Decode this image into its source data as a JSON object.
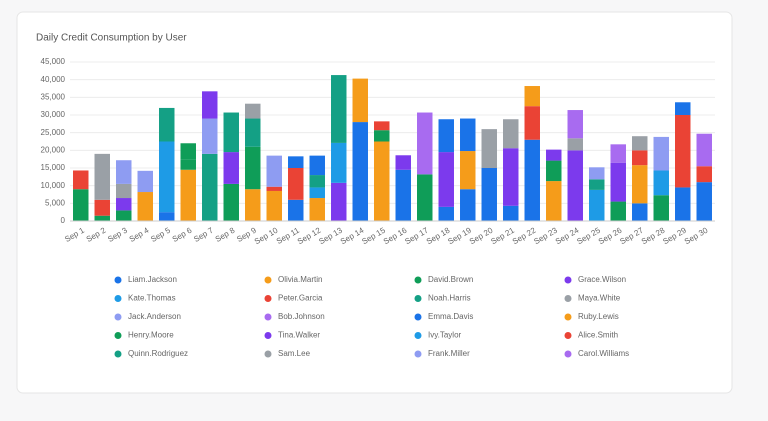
{
  "chart_data": {
    "type": "stacked_bar",
    "title": "Daily Credit Consumption by User",
    "categories": [
      "Sep 1",
      "Sep 2",
      "Sep 3",
      "Sep 4",
      "Sep 5",
      "Sep 6",
      "Sep 7",
      "Sep 8",
      "Sep 9",
      "Sep 10",
      "Sep 11",
      "Sep 12",
      "Sep 13",
      "Sep 14",
      "Sep 15",
      "Sep 16",
      "Sep 17",
      "Sep 18",
      "Sep 19",
      "Sep 20",
      "Sep 21",
      "Sep 22",
      "Sep 23",
      "Sep 24",
      "Sep 25",
      "Sep 26",
      "Sep 27",
      "Sep 28",
      "Sep 29",
      "Sep 30"
    ],
    "ylim": [
      0,
      45000
    ],
    "yticks": [
      0,
      {
        "value": 5000,
        "label": "5,000"
      },
      {
        "value": 10000,
        "label": "10,000"
      },
      {
        "value": 15000,
        "label": "15,000"
      },
      {
        "value": 20000,
        "label": "20,000"
      },
      {
        "value": 25000,
        "label": "25,000"
      },
      {
        "value": 30000,
        "label": "30,000"
      },
      {
        "value": 35000,
        "label": "35,000"
      },
      {
        "value": 40000,
        "label": "40,000"
      },
      {
        "value": 45000,
        "label": "45,000"
      }
    ],
    "grid": true,
    "series": [
      {
        "name": "Liam.Jackson",
        "color": "#1a73e8",
        "values": [
          null,
          null,
          null,
          null,
          2500,
          null,
          null,
          null,
          null,
          null,
          6000,
          null,
          null,
          28000,
          null,
          14500,
          null,
          4000,
          9000,
          15000,
          4300,
          23000,
          null,
          null,
          null,
          null,
          5000,
          null,
          9500,
          11000
        ]
      },
      {
        "name": "Olivia.Martin",
        "color": "#f59c1a",
        "values": [
          null,
          null,
          null,
          8200,
          null,
          14500,
          null,
          null,
          9000,
          8500,
          null,
          6500,
          null,
          12300,
          22500,
          null,
          null,
          null,
          10800,
          null,
          null,
          null,
          11300,
          null,
          null,
          null,
          10800,
          null,
          null,
          null
        ]
      },
      {
        "name": "David.Brown",
        "color": "#0f9d58",
        "values": [
          9000,
          1500,
          3000,
          null,
          null,
          3000,
          null,
          10500,
          12000,
          null,
          null,
          null,
          null,
          null,
          3200,
          null,
          13200,
          null,
          null,
          null,
          null,
          null,
          5800,
          null,
          null,
          5500,
          null,
          7300,
          null,
          null
        ]
      },
      {
        "name": "Grace.Wilson",
        "color": "#7c3aed",
        "values": [
          null,
          null,
          3500,
          null,
          null,
          null,
          null,
          9000,
          null,
          null,
          null,
          null,
          10800,
          null,
          null,
          4100,
          null,
          15500,
          null,
          null,
          16300,
          null,
          3100,
          20000,
          null,
          11000,
          null,
          null,
          null,
          null
        ]
      },
      {
        "name": "Kate.Thomas",
        "color": "#1e9be6",
        "values": [
          null,
          null,
          null,
          null,
          20000,
          null,
          null,
          null,
          null,
          null,
          null,
          3000,
          11300,
          null,
          null,
          null,
          null,
          null,
          null,
          null,
          null,
          null,
          null,
          null,
          8800,
          null,
          null,
          7000,
          null,
          null
        ]
      },
      {
        "name": "Peter.Garcia",
        "color": "#ea4335",
        "values": [
          5300,
          4500,
          null,
          null,
          null,
          null,
          null,
          null,
          null,
          1200,
          9000,
          null,
          null,
          null,
          2500,
          null,
          null,
          null,
          null,
          null,
          null,
          9500,
          null,
          null,
          null,
          null,
          4200,
          null,
          20500,
          4500
        ]
      },
      {
        "name": "Noah.Harris",
        "color": "#14a085",
        "values": [
          null,
          null,
          null,
          null,
          9500,
          null,
          19000,
          11200,
          8000,
          null,
          null,
          3500,
          19200,
          null,
          null,
          null,
          null,
          null,
          null,
          null,
          null,
          null,
          null,
          null,
          3000,
          null,
          null,
          null,
          null,
          null
        ]
      },
      {
        "name": "Maya.White",
        "color": "#9aa0a6",
        "values": [
          null,
          13000,
          4000,
          null,
          null,
          null,
          null,
          null,
          4200,
          null,
          null,
          null,
          null,
          null,
          null,
          null,
          null,
          null,
          null,
          11000,
          8200,
          null,
          null,
          3400,
          null,
          null,
          4000,
          null,
          null,
          null
        ]
      },
      {
        "name": "Jack.Anderson",
        "color": "#8e9cf2",
        "values": [
          null,
          null,
          6700,
          6000,
          null,
          null,
          10000,
          null,
          null,
          8800,
          null,
          null,
          null,
          null,
          null,
          null,
          null,
          null,
          null,
          null,
          null,
          null,
          null,
          null,
          3400,
          null,
          null,
          9500,
          null,
          null
        ]
      },
      {
        "name": "Bob.Johnson",
        "color": "#a86bf0",
        "values": [
          null,
          null,
          null,
          null,
          null,
          null,
          null,
          null,
          null,
          null,
          null,
          null,
          null,
          null,
          null,
          null,
          17500,
          null,
          null,
          null,
          null,
          null,
          null,
          8000,
          null,
          5200,
          null,
          null,
          null,
          9200
        ]
      },
      {
        "name": "Emma.Davis",
        "color": "#1a73e8",
        "values": [
          null,
          null,
          null,
          null,
          null,
          null,
          null,
          null,
          null,
          null,
          3300,
          5500,
          null,
          null,
          null,
          null,
          null,
          9300,
          9200,
          null,
          null,
          null,
          null,
          null,
          null,
          null,
          null,
          null,
          3600,
          null
        ]
      },
      {
        "name": "Ruby.Lewis",
        "color": "#f59c1a",
        "values": [
          null,
          null,
          null,
          null,
          null,
          null,
          null,
          null,
          null,
          null,
          null,
          null,
          null,
          null,
          null,
          null,
          null,
          null,
          null,
          null,
          null,
          5700,
          null,
          null,
          null,
          null,
          null,
          null,
          null,
          null
        ]
      },
      {
        "name": "Henry.Moore",
        "color": "#0f9d58",
        "values": [
          null,
          null,
          null,
          null,
          null,
          4500,
          null,
          null,
          null,
          null,
          null,
          null,
          null,
          null,
          null,
          null,
          null,
          null,
          null,
          null,
          null,
          null,
          null,
          null,
          null,
          null,
          null,
          null,
          null,
          null
        ]
      },
      {
        "name": "Tina.Walker",
        "color": "#7c3aed",
        "values": [
          null,
          null,
          null,
          null,
          null,
          null,
          7700,
          null,
          null,
          null,
          null,
          null,
          null,
          null,
          null,
          null,
          null,
          null,
          null,
          null,
          null,
          null,
          null,
          null,
          null,
          null,
          null,
          null,
          null,
          null
        ]
      },
      {
        "name": "Ivy.Taylor",
        "color": "#1e9be6",
        "values": [
          null,
          null,
          null,
          null,
          null,
          null,
          null,
          null,
          null,
          null,
          null,
          null,
          null,
          null,
          null,
          null,
          null,
          null,
          null,
          null,
          null,
          null,
          null,
          null,
          null,
          null,
          null,
          null,
          null,
          null
        ]
      },
      {
        "name": "Alice.Smith",
        "color": "#ea4335",
        "values": [
          null,
          null,
          null,
          null,
          null,
          null,
          null,
          null,
          null,
          null,
          null,
          null,
          null,
          null,
          null,
          null,
          null,
          null,
          null,
          null,
          null,
          null,
          null,
          null,
          null,
          null,
          null,
          null,
          null,
          null
        ]
      },
      {
        "name": "Quinn.Rodriguez",
        "color": "#14a085",
        "values": [
          null,
          null,
          null,
          null,
          null,
          null,
          null,
          null,
          null,
          null,
          null,
          null,
          null,
          null,
          null,
          null,
          null,
          null,
          null,
          null,
          null,
          null,
          null,
          null,
          null,
          null,
          null,
          null,
          null,
          null
        ]
      },
      {
        "name": "Sam.Lee",
        "color": "#9aa0a6",
        "values": [
          null,
          null,
          null,
          null,
          null,
          null,
          null,
          null,
          null,
          null,
          null,
          null,
          null,
          null,
          null,
          null,
          null,
          null,
          null,
          null,
          null,
          null,
          null,
          null,
          null,
          null,
          null,
          null,
          null,
          null
        ]
      },
      {
        "name": "Frank.Miller",
        "color": "#8e9cf2",
        "values": [
          null,
          null,
          null,
          null,
          null,
          null,
          null,
          null,
          null,
          null,
          null,
          null,
          null,
          null,
          null,
          null,
          null,
          null,
          null,
          null,
          null,
          null,
          null,
          null,
          null,
          null,
          null,
          null,
          null,
          null
        ]
      },
      {
        "name": "Carol.Williams",
        "color": "#a86bf0",
        "values": [
          null,
          null,
          null,
          null,
          null,
          null,
          null,
          null,
          null,
          null,
          null,
          null,
          null,
          null,
          null,
          null,
          null,
          null,
          null,
          null,
          null,
          null,
          null,
          null,
          null,
          null,
          null,
          null,
          null,
          null
        ]
      }
    ]
  }
}
